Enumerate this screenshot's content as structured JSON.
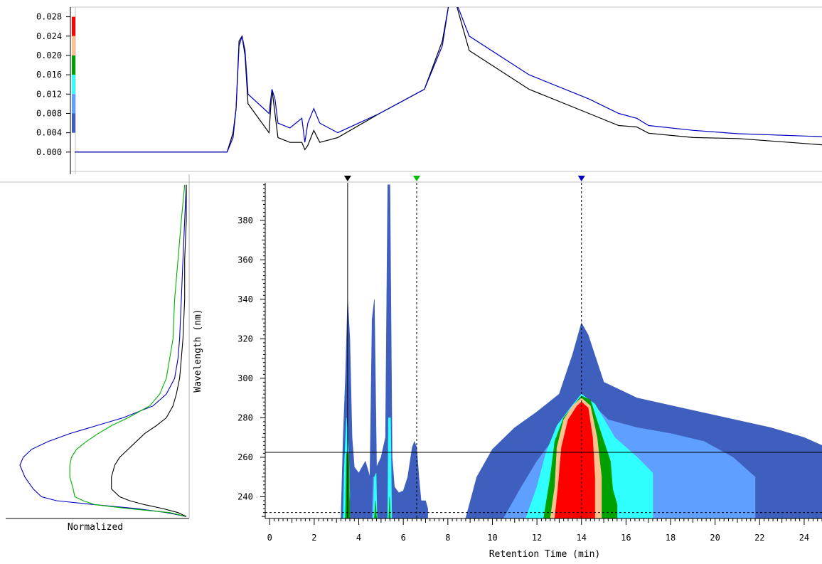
{
  "chart_data": [
    {
      "panel": "chromatogram",
      "type": "line",
      "y_ticks": [
        "0.028",
        "0.024",
        "0.020",
        "0.016",
        "0.012",
        "0.008",
        "0.004",
        "0.000"
      ],
      "ylim": [
        -0.004,
        0.03
      ],
      "xlim": [
        -0.2,
        24.8
      ],
      "color_scale": {
        "colors": [
          "#ff0000",
          "#ffc090",
          "#00a000",
          "#30ffff",
          "#5f9fff",
          "#3f5fbf"
        ],
        "bounds": [
          0.028,
          0.024,
          0.02,
          0.016,
          0.012,
          0.008,
          0.004
        ]
      },
      "series": [
        {
          "color": "#000000",
          "x": [
            -0.2,
            2.0,
            4.5,
            4.9,
            5.1,
            5.2,
            5.3,
            5.4,
            5.5,
            5.6,
            6.3,
            6.4,
            6.5,
            6.6,
            7.0,
            7.4,
            7.5,
            7.6,
            7.8,
            8.0,
            8.6,
            10.0,
            11.5,
            12.1,
            12.3,
            12.5,
            13.0,
            15.0,
            17.0,
            18.0,
            18.6,
            19.0,
            20.5,
            22.0,
            24.8
          ],
          "y": [
            0.0,
            0.0,
            0.0,
            0.0,
            0.004,
            0.009,
            0.023,
            0.024,
            0.02,
            0.01,
            0.004,
            0.013,
            0.008,
            0.003,
            0.002,
            0.002,
            0.0005,
            0.0014,
            0.0045,
            0.002,
            0.003,
            0.008,
            0.013,
            0.023,
            0.03,
            0.032,
            0.021,
            0.013,
            0.008,
            0.0055,
            0.0052,
            0.0039,
            0.003,
            0.0028,
            0.0015
          ]
        },
        {
          "color": "#0000c0",
          "x": [
            -0.2,
            2.0,
            4.5,
            4.9,
            5.1,
            5.2,
            5.3,
            5.4,
            5.5,
            5.6,
            6.3,
            6.4,
            6.5,
            6.6,
            7.0,
            7.4,
            7.5,
            7.6,
            7.8,
            8.0,
            8.6,
            10.0,
            11.5,
            12.1,
            12.3,
            12.5,
            13.0,
            15.0,
            17.0,
            18.0,
            18.6,
            19.0,
            20.5,
            22.0,
            24.8
          ],
          "y": [
            0.0,
            0.0,
            0.0,
            0.0,
            0.003,
            0.009,
            0.022,
            0.024,
            0.021,
            0.012,
            0.008,
            0.013,
            0.011,
            0.006,
            0.005,
            0.007,
            0.002,
            0.006,
            0.009,
            0.006,
            0.004,
            0.008,
            0.013,
            0.022,
            0.03,
            0.032,
            0.024,
            0.016,
            0.011,
            0.008,
            0.007,
            0.0055,
            0.0045,
            0.0038,
            0.0032
          ]
        }
      ]
    },
    {
      "panel": "spectrum",
      "type": "line",
      "xlabel": "Normalized",
      "ylim": [
        229,
        399
      ],
      "series": [
        {
          "color": "#0000c0",
          "wavelength": [
            230,
            232,
            234,
            236,
            238,
            240,
            244,
            250,
            256,
            260,
            264,
            268,
            272,
            276,
            280,
            286,
            292,
            300,
            310,
            320,
            340,
            360,
            380,
            398
          ],
          "normalized": [
            0.0,
            0.12,
            0.3,
            0.55,
            0.78,
            0.87,
            0.92,
            0.97,
            1.0,
            0.98,
            0.93,
            0.83,
            0.7,
            0.54,
            0.38,
            0.2,
            0.12,
            0.07,
            0.05,
            0.04,
            0.03,
            0.02,
            0.01,
            0.0
          ]
        },
        {
          "color": "#00b000",
          "wavelength": [
            230,
            232,
            234,
            236,
            238,
            240,
            244,
            250,
            256,
            260,
            264,
            268,
            272,
            276,
            280,
            286,
            292,
            300,
            310,
            320,
            340,
            360,
            380,
            398
          ],
          "normalized": [
            0.0,
            0.1,
            0.35,
            0.55,
            0.62,
            0.67,
            0.68,
            0.7,
            0.7,
            0.69,
            0.66,
            0.6,
            0.53,
            0.45,
            0.35,
            0.22,
            0.16,
            0.12,
            0.1,
            0.08,
            0.07,
            0.05,
            0.03,
            0.01
          ]
        },
        {
          "color": "#000000",
          "wavelength": [
            230,
            232,
            234,
            236,
            238,
            240,
            244,
            250,
            256,
            260,
            264,
            268,
            272,
            276,
            280,
            286,
            292,
            300,
            310,
            320,
            340,
            360,
            380,
            398
          ],
          "normalized": [
            0.0,
            0.05,
            0.14,
            0.25,
            0.34,
            0.4,
            0.45,
            0.45,
            0.43,
            0.4,
            0.35,
            0.3,
            0.25,
            0.18,
            0.12,
            0.08,
            0.06,
            0.04,
            0.03,
            0.02,
            0.01,
            0.01,
            0.0,
            0.0
          ]
        }
      ]
    },
    {
      "panel": "contour",
      "type": "heatmap",
      "xlabel": "Retention Time (min)",
      "ylabel": "Wavelength (nm)",
      "x_ticks": [
        "0",
        "2",
        "4",
        "6",
        "8",
        "10",
        "12",
        "14",
        "16",
        "18",
        "20",
        "22",
        "24"
      ],
      "y_ticks": [
        "240",
        "260",
        "280",
        "300",
        "320",
        "340",
        "360",
        "380"
      ],
      "xlim": [
        -0.2,
        24.8
      ],
      "ylim": [
        229,
        399
      ],
      "cursor_wavelength_solid": 262.5,
      "cursor_wavelength_dashed": 232,
      "markers": [
        {
          "time": 3.5,
          "color": "#000000",
          "line": "solid"
        },
        {
          "time": 6.6,
          "color": "#00c000",
          "line": "dashed"
        },
        {
          "time": 14.0,
          "color": "#0000c0",
          "line": "dashed"
        }
      ],
      "contour_levels": [
        {
          "color": "#3f5fbf",
          "regions": [
            {
              "x": [
                8.8,
                9.3,
                10.0,
                11.0,
                12.0,
                13.0,
                13.6,
                14.0,
                14.3,
                15.0,
                16.5,
                18.5,
                20.5,
                22.5,
                24.0,
                24.8,
                24.8,
                8.8
              ],
              "y": [
                229,
                250,
                264,
                275,
                283,
                292,
                312,
                328,
                322,
                298,
                290,
                285,
                280,
                275,
                270,
                266,
                229,
                229
              ]
            },
            {
              "x": [
                3.2,
                3.3,
                3.4,
                3.5,
                3.6,
                3.7,
                3.8,
                4.0,
                4.3,
                4.5,
                4.6,
                4.7,
                4.8,
                5.0,
                5.2,
                5.3,
                5.4,
                5.5,
                5.6,
                5.8,
                6.0,
                6.2,
                6.4,
                6.5,
                6.6,
                6.7,
                6.8,
                7.0,
                7.1,
                7.1,
                3.2
              ],
              "y": [
                229,
                270,
                300,
                340,
                320,
                270,
                255,
                252,
                258,
                250,
                330,
                340,
                255,
                260,
                270,
                398,
                398,
                260,
                245,
                242,
                243,
                250,
                265,
                268,
                265,
                250,
                238,
                238,
                234,
                229,
                229
              ]
            }
          ]
        },
        {
          "color": "#5f9fff",
          "regions": [
            {
              "x": [
                10.5,
                11.3,
                12.0,
                12.8,
                13.6,
                14.0,
                14.4,
                15.2,
                16.5,
                18.0,
                19.5,
                20.8,
                21.8,
                21.8,
                10.5
              ],
              "y": [
                229,
                245,
                258,
                270,
                281,
                290,
                288,
                279,
                275,
                272,
                268,
                260,
                250,
                229,
                229
              ]
            },
            {
              "x": [
                4.6,
                4.65,
                4.75,
                4.8,
                4.6
              ],
              "y": [
                229,
                250,
                250,
                229,
                229
              ]
            }
          ]
        },
        {
          "color": "#30ffff",
          "regions": [
            {
              "x": [
                11.5,
                12.0,
                12.4,
                12.9,
                13.5,
                14.0,
                14.6,
                15.5,
                16.5,
                17.2,
                17.2,
                11.5
              ],
              "y": [
                229,
                245,
                262,
                276,
                285,
                292,
                287,
                270,
                260,
                252,
                229,
                229
              ]
            },
            {
              "x": [
                3.3,
                3.35,
                3.45,
                3.55,
                3.6,
                3.5,
                3.3
              ],
              "y": [
                229,
                255,
                280,
                262,
                240,
                229,
                229
              ]
            },
            {
              "x": [
                4.65,
                4.7,
                4.78,
                4.82,
                4.65
              ],
              "y": [
                229,
                250,
                252,
                229,
                229
              ]
            },
            {
              "x": [
                5.3,
                5.33,
                5.43,
                5.48,
                5.3
              ],
              "y": [
                229,
                280,
                280,
                229,
                229
              ]
            }
          ]
        },
        {
          "color": "#00a000",
          "regions": [
            {
              "x": [
                12.3,
                12.6,
                12.8,
                13.2,
                13.7,
                14.0,
                14.4,
                14.8,
                15.3,
                15.4,
                15.6,
                15.6,
                12.3
              ],
              "y": [
                229,
                250,
                268,
                280,
                287,
                291,
                289,
                275,
                258,
                244,
                236,
                229,
                229
              ]
            },
            {
              "x": [
                3.4,
                3.45,
                3.55,
                3.6,
                3.4
              ],
              "y": [
                229,
                262,
                262,
                229,
                229
              ]
            },
            {
              "x": [
                4.7,
                4.75,
                4.8,
                4.7
              ],
              "y": [
                229,
                238,
                229,
                229
              ]
            },
            {
              "x": [
                5.35,
                5.38,
                5.42,
                5.35
              ],
              "y": [
                229,
                240,
                229,
                229
              ]
            }
          ]
        },
        {
          "color": "#ffc090",
          "regions": [
            {
              "x": [
                12.6,
                12.8,
                12.9,
                13.2,
                13.6,
                14.0,
                14.4,
                14.7,
                14.9,
                14.9,
                12.6
              ],
              "y": [
                229,
                245,
                265,
                279,
                286,
                290,
                286,
                270,
                250,
                229,
                229
              ]
            }
          ]
        },
        {
          "color": "#ff0000",
          "regions": [
            {
              "x": [
                12.8,
                12.95,
                13.1,
                13.4,
                13.8,
                14.0,
                14.3,
                14.5,
                14.6,
                14.6,
                12.8
              ],
              "y": [
                229,
                245,
                265,
                279,
                286,
                288,
                285,
                270,
                250,
                229,
                229
              ]
            }
          ]
        }
      ]
    }
  ]
}
